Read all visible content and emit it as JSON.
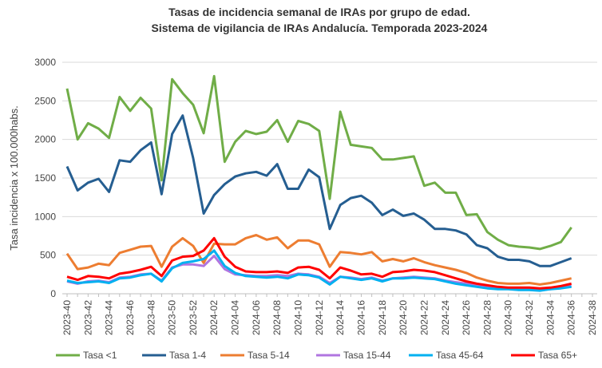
{
  "chart_data": {
    "type": "line",
    "title": "Tasas de incidencia semanal de IRAs por grupo de edad.",
    "subtitle": "Sistema de vigilancia de IRAs Andalucía. Temporada 2023-2024",
    "y_label": "Tasa incidencia x 100.000habs.",
    "categories": [
      "2023-40",
      null,
      "2023-42",
      null,
      "2023-44",
      null,
      "2023-46",
      null,
      "2023-48",
      null,
      "2023-50",
      null,
      "2023-52",
      null,
      "2024-02",
      null,
      "2024-04",
      null,
      "2024-06",
      null,
      "2024-08",
      null,
      "2024-10",
      null,
      "2024-12",
      null,
      "2024-14",
      null,
      "2024-16",
      null,
      "2024-18",
      null,
      "2024-20",
      null,
      "2024-22",
      null,
      "2024-24",
      null,
      "2024-26",
      null,
      "2024-28",
      null,
      "2024-30",
      null,
      "2024-32",
      null,
      "2024-34",
      null,
      "2024-36",
      null,
      "2024-38"
    ],
    "series": [
      {
        "name": "Tasa <1",
        "color": "#70ad47",
        "values": [
          2660,
          2000,
          2210,
          2140,
          2020,
          2550,
          2370,
          2540,
          2400,
          1470,
          2780,
          2600,
          2450,
          2080,
          2820,
          1710,
          1970,
          2110,
          2070,
          2100,
          2250,
          1970,
          2240,
          2200,
          2110,
          1230,
          2360,
          1930,
          1910,
          1890,
          1740,
          1740,
          1760,
          1780,
          1400,
          1440,
          1310,
          1310,
          1020,
          1030,
          800,
          700,
          630,
          610,
          600,
          580,
          620,
          670,
          860,
          null,
          null
        ]
      },
      {
        "name": "Tasa 1-4",
        "color": "#255e91",
        "values": [
          1650,
          1340,
          1440,
          1490,
          1320,
          1730,
          1710,
          1860,
          1960,
          1290,
          2070,
          2310,
          1760,
          1040,
          1280,
          1420,
          1520,
          1560,
          1580,
          1530,
          1680,
          1360,
          1360,
          1610,
          1510,
          840,
          1150,
          1240,
          1270,
          1180,
          1020,
          1090,
          1010,
          1040,
          960,
          840,
          840,
          820,
          770,
          630,
          590,
          480,
          440,
          440,
          420,
          360,
          360,
          410,
          460,
          null,
          null
        ]
      },
      {
        "name": "Tasa 5-14",
        "color": "#ed7d31",
        "values": [
          520,
          320,
          340,
          390,
          370,
          530,
          570,
          610,
          620,
          350,
          610,
          720,
          620,
          400,
          650,
          640,
          640,
          720,
          760,
          700,
          730,
          590,
          690,
          690,
          640,
          350,
          540,
          530,
          510,
          540,
          420,
          450,
          420,
          460,
          410,
          370,
          340,
          310,
          270,
          210,
          170,
          140,
          130,
          130,
          140,
          120,
          140,
          170,
          200,
          null,
          null
        ]
      },
      {
        "name": "Tasa 15-44",
        "color": "#b075e0",
        "values": [
          160,
          130,
          160,
          170,
          150,
          210,
          220,
          250,
          260,
          170,
          340,
          380,
          380,
          360,
          490,
          320,
          250,
          240,
          230,
          230,
          240,
          230,
          260,
          250,
          220,
          140,
          220,
          210,
          190,
          210,
          170,
          200,
          210,
          220,
          210,
          200,
          170,
          150,
          130,
          110,
          90,
          80,
          70,
          70,
          60,
          50,
          60,
          80,
          100,
          null,
          null
        ]
      },
      {
        "name": "Tasa 45-64",
        "color": "#00b0f0",
        "values": [
          170,
          140,
          150,
          160,
          140,
          200,
          210,
          240,
          260,
          160,
          330,
          400,
          420,
          450,
          560,
          360,
          270,
          230,
          220,
          210,
          220,
          200,
          250,
          240,
          210,
          120,
          220,
          200,
          180,
          200,
          160,
          200,
          200,
          210,
          200,
          190,
          160,
          130,
          110,
          90,
          70,
          60,
          60,
          50,
          50,
          40,
          60,
          70,
          90,
          null,
          null
        ]
      },
      {
        "name": "Tasa 65+",
        "color": "#ff0000",
        "values": [
          220,
          180,
          230,
          220,
          200,
          260,
          280,
          310,
          350,
          230,
          430,
          480,
          490,
          560,
          720,
          480,
          350,
          290,
          280,
          280,
          290,
          270,
          340,
          350,
          310,
          200,
          340,
          300,
          250,
          260,
          220,
          280,
          290,
          310,
          300,
          280,
          240,
          200,
          160,
          130,
          110,
          90,
          80,
          80,
          80,
          70,
          80,
          100,
          130,
          null,
          null
        ]
      }
    ],
    "ylim": [
      0,
      3000
    ],
    "yticks": [
      0,
      500,
      1000,
      1500,
      2000,
      2500,
      3000
    ],
    "grid": true,
    "legend": "bottom"
  }
}
